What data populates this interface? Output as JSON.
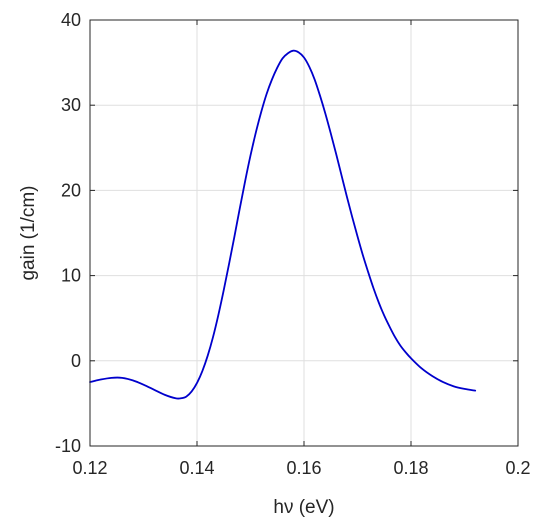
{
  "chart_data": {
    "type": "line",
    "title": "",
    "xlabel": "hν (eV)",
    "ylabel": "gain (1/cm)",
    "xlim": [
      0.12,
      0.2
    ],
    "ylim": [
      -10,
      40
    ],
    "xticks": [
      0.12,
      0.14,
      0.16,
      0.18,
      0.2
    ],
    "xtick_labels": [
      "0.12",
      "0.14",
      "0.16",
      "0.18",
      "0.2"
    ],
    "yticks": [
      -10,
      0,
      10,
      20,
      30,
      40
    ],
    "ytick_labels": [
      "-10",
      "0",
      "10",
      "20",
      "30",
      "40"
    ],
    "grid": true,
    "legend": "none",
    "series": [
      {
        "color": "#0000cc",
        "x": [
          0.12,
          0.122,
          0.124,
          0.126,
          0.128,
          0.13,
          0.132,
          0.134,
          0.136,
          0.137,
          0.138,
          0.139,
          0.14,
          0.141,
          0.142,
          0.143,
          0.144,
          0.145,
          0.146,
          0.147,
          0.148,
          0.149,
          0.15,
          0.151,
          0.152,
          0.153,
          0.154,
          0.155,
          0.156,
          0.157,
          0.158,
          0.159,
          0.16,
          0.161,
          0.162,
          0.163,
          0.164,
          0.165,
          0.166,
          0.167,
          0.168,
          0.169,
          0.17,
          0.171,
          0.172,
          0.173,
          0.174,
          0.175,
          0.176,
          0.177,
          0.178,
          0.179,
          0.18,
          0.182,
          0.184,
          0.186,
          0.188,
          0.19,
          0.192
        ],
        "y": [
          -2.5,
          -2.2,
          -2.0,
          -2.0,
          -2.3,
          -2.8,
          -3.4,
          -4.0,
          -4.4,
          -4.4,
          -4.2,
          -3.6,
          -2.6,
          -1.2,
          0.6,
          2.8,
          5.4,
          8.3,
          11.4,
          14.6,
          17.9,
          21.1,
          24.1,
          26.8,
          29.2,
          31.3,
          33.0,
          34.4,
          35.5,
          36.1,
          36.4,
          36.2,
          35.6,
          34.5,
          33.0,
          31.1,
          29.0,
          26.7,
          24.3,
          21.8,
          19.3,
          16.9,
          14.6,
          12.4,
          10.4,
          8.5,
          6.8,
          5.3,
          4.0,
          2.8,
          1.8,
          1.0,
          0.3,
          -0.9,
          -1.8,
          -2.5,
          -3.0,
          -3.3,
          -3.5
        ]
      }
    ]
  }
}
